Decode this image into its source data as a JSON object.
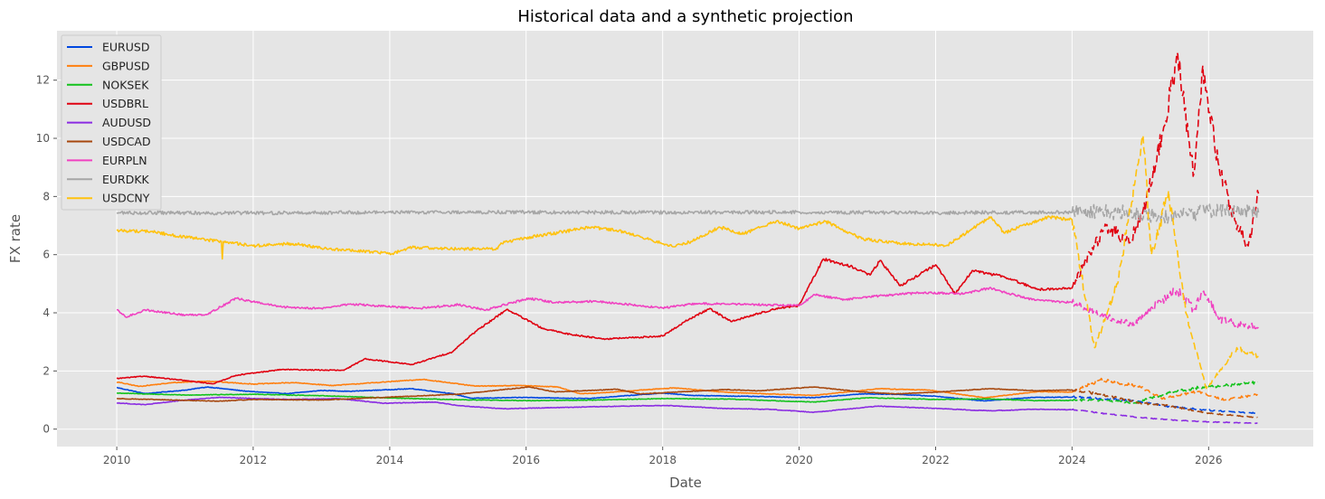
{
  "chart_data": {
    "type": "line",
    "title": "Historical data and a synthetic projection",
    "xlabel": "Date",
    "ylabel": "FX rate",
    "xlim": [
      "2009-02-15",
      "2027-07-15"
    ],
    "ylim": [
      -0.6,
      13.7
    ],
    "x_ticks": [
      "2010",
      "2012",
      "2014",
      "2016",
      "2018",
      "2020",
      "2022",
      "2024",
      "2026"
    ],
    "y_ticks": [
      0,
      2,
      4,
      6,
      8,
      10,
      12
    ],
    "grid": true,
    "background": "#E5E5E5",
    "legend_position": "upper left",
    "historical_style": "solid",
    "projection_style": "dashed",
    "projection_start": "2024-01-01",
    "series": [
      {
        "name": "EURUSD",
        "color": "#0047E0",
        "points": [
          [
            "2010-01-01",
            1.43
          ],
          [
            "2010-06-01",
            1.22
          ],
          [
            "2011-01-01",
            1.34
          ],
          [
            "2011-05-01",
            1.45
          ],
          [
            "2011-12-01",
            1.3
          ],
          [
            "2012-07-01",
            1.22
          ],
          [
            "2013-01-01",
            1.33
          ],
          [
            "2013-06-01",
            1.3
          ],
          [
            "2014-05-01",
            1.39
          ],
          [
            "2014-12-01",
            1.22
          ],
          [
            "2015-03-15",
            1.06
          ],
          [
            "2016-01-01",
            1.09
          ],
          [
            "2016-12-01",
            1.05
          ],
          [
            "2017-06-01",
            1.14
          ],
          [
            "2018-01-01",
            1.24
          ],
          [
            "2018-06-01",
            1.16
          ],
          [
            "2019-06-01",
            1.12
          ],
          [
            "2020-03-15",
            1.08
          ],
          [
            "2020-12-01",
            1.21
          ],
          [
            "2021-06-01",
            1.2
          ],
          [
            "2022-01-01",
            1.13
          ],
          [
            "2022-09-15",
            0.97
          ],
          [
            "2023-06-01",
            1.09
          ],
          [
            "2024-01-01",
            1.1
          ],
          [
            "2024-06-01",
            1.05
          ],
          [
            "2025-01-01",
            0.95
          ],
          [
            "2025-06-01",
            0.78
          ],
          [
            "2026-01-01",
            0.65
          ],
          [
            "2026-05-01",
            0.6
          ],
          [
            "2026-09-20",
            0.55
          ]
        ]
      },
      {
        "name": "GBPUSD",
        "color": "#FF7F0E",
        "points": [
          [
            "2010-01-01",
            1.62
          ],
          [
            "2010-05-01",
            1.47
          ],
          [
            "2010-11-01",
            1.6
          ],
          [
            "2011-05-01",
            1.65
          ],
          [
            "2012-01-01",
            1.55
          ],
          [
            "2012-08-01",
            1.6
          ],
          [
            "2013-03-01",
            1.5
          ],
          [
            "2014-07-01",
            1.71
          ],
          [
            "2015-04-01",
            1.48
          ],
          [
            "2015-12-01",
            1.5
          ],
          [
            "2016-06-20",
            1.45
          ],
          [
            "2016-10-15",
            1.22
          ],
          [
            "2017-01-01",
            1.23
          ],
          [
            "2018-03-01",
            1.42
          ],
          [
            "2018-12-01",
            1.27
          ],
          [
            "2019-08-01",
            1.21
          ],
          [
            "2020-03-20",
            1.16
          ],
          [
            "2021-03-01",
            1.39
          ],
          [
            "2021-12-01",
            1.34
          ],
          [
            "2022-09-20",
            1.08
          ],
          [
            "2023-07-01",
            1.29
          ],
          [
            "2024-01-01",
            1.27
          ],
          [
            "2024-06-01",
            1.7
          ],
          [
            "2025-01-01",
            1.45
          ],
          [
            "2025-05-01",
            1.05
          ],
          [
            "2025-11-01",
            1.3
          ],
          [
            "2026-04-01",
            1.0
          ],
          [
            "2026-09-20",
            1.2
          ]
        ]
      },
      {
        "name": "NOKSEK",
        "color": "#12C21B",
        "points": [
          [
            "2010-01-01",
            1.24
          ],
          [
            "2011-01-01",
            1.17
          ],
          [
            "2012-01-01",
            1.2
          ],
          [
            "2013-01-01",
            1.15
          ],
          [
            "2014-01-01",
            1.07
          ],
          [
            "2015-01-01",
            1.01
          ],
          [
            "2016-01-01",
            0.98
          ],
          [
            "2017-01-01",
            1.0
          ],
          [
            "2018-01-01",
            1.05
          ],
          [
            "2019-01-01",
            1.03
          ],
          [
            "2020-03-20",
            0.93
          ],
          [
            "2021-01-01",
            1.08
          ],
          [
            "2022-01-01",
            1.02
          ],
          [
            "2022-10-01",
            1.04
          ],
          [
            "2023-07-01",
            0.98
          ],
          [
            "2024-01-01",
            0.99
          ],
          [
            "2024-06-01",
            1.0
          ],
          [
            "2024-12-01",
            0.9
          ],
          [
            "2025-06-01",
            1.25
          ],
          [
            "2025-12-01",
            1.45
          ],
          [
            "2026-04-01",
            1.5
          ],
          [
            "2026-09-20",
            1.62
          ]
        ]
      },
      {
        "name": "USDBRL",
        "color": "#E00010",
        "points": [
          [
            "2010-01-01",
            1.74
          ],
          [
            "2010-06-01",
            1.82
          ],
          [
            "2011-06-01",
            1.56
          ],
          [
            "2011-10-01",
            1.85
          ],
          [
            "2012-06-01",
            2.05
          ],
          [
            "2013-05-01",
            2.02
          ],
          [
            "2013-08-20",
            2.42
          ],
          [
            "2014-05-01",
            2.22
          ],
          [
            "2014-12-01",
            2.65
          ],
          [
            "2015-03-15",
            3.25
          ],
          [
            "2015-09-20",
            4.12
          ],
          [
            "2016-04-01",
            3.45
          ],
          [
            "2016-09-01",
            3.25
          ],
          [
            "2017-03-01",
            3.1
          ],
          [
            "2018-01-01",
            3.2
          ],
          [
            "2018-05-01",
            3.7
          ],
          [
            "2018-09-10",
            4.15
          ],
          [
            "2019-01-01",
            3.7
          ],
          [
            "2019-09-01",
            4.15
          ],
          [
            "2020-01-01",
            4.25
          ],
          [
            "2020-05-10",
            5.85
          ],
          [
            "2020-10-01",
            5.6
          ],
          [
            "2021-01-15",
            5.3
          ],
          [
            "2021-03-10",
            5.8
          ],
          [
            "2021-06-25",
            4.93
          ],
          [
            "2022-01-01",
            5.65
          ],
          [
            "2022-04-15",
            4.65
          ],
          [
            "2022-07-15",
            5.45
          ],
          [
            "2023-01-01",
            5.25
          ],
          [
            "2023-07-01",
            4.8
          ],
          [
            "2024-01-01",
            4.85
          ],
          [
            "2024-03-15",
            5.8
          ],
          [
            "2024-07-01",
            7.0
          ],
          [
            "2024-11-01",
            6.4
          ],
          [
            "2025-02-01",
            7.8
          ],
          [
            "2025-05-01",
            10.2
          ],
          [
            "2025-07-20",
            12.9
          ],
          [
            "2025-09-15",
            10.0
          ],
          [
            "2025-10-15",
            8.8
          ],
          [
            "2025-12-01",
            12.5
          ],
          [
            "2026-02-01",
            9.8
          ],
          [
            "2026-05-01",
            7.5
          ],
          [
            "2026-08-01",
            6.3
          ],
          [
            "2026-09-25",
            8.1
          ]
        ]
      },
      {
        "name": "AUDUSD",
        "color": "#8A2BE2",
        "points": [
          [
            "2010-01-01",
            0.9
          ],
          [
            "2010-06-01",
            0.84
          ],
          [
            "2011-01-01",
            1.0
          ],
          [
            "2011-07-01",
            1.09
          ],
          [
            "2012-07-01",
            1.02
          ],
          [
            "2013-04-01",
            1.05
          ],
          [
            "2013-12-01",
            0.89
          ],
          [
            "2014-09-01",
            0.93
          ],
          [
            "2015-01-01",
            0.81
          ],
          [
            "2015-09-01",
            0.7
          ],
          [
            "2016-06-01",
            0.74
          ],
          [
            "2017-09-01",
            0.8
          ],
          [
            "2018-01-25",
            0.81
          ],
          [
            "2018-12-01",
            0.71
          ],
          [
            "2019-08-01",
            0.68
          ],
          [
            "2020-03-20",
            0.58
          ],
          [
            "2021-02-25",
            0.79
          ],
          [
            "2021-12-01",
            0.72
          ],
          [
            "2022-10-15",
            0.63
          ],
          [
            "2023-06-01",
            0.68
          ],
          [
            "2024-01-01",
            0.67
          ],
          [
            "2024-06-01",
            0.55
          ],
          [
            "2025-01-01",
            0.4
          ],
          [
            "2025-06-01",
            0.32
          ],
          [
            "2026-01-01",
            0.25
          ],
          [
            "2026-09-20",
            0.2
          ]
        ]
      },
      {
        "name": "USDCAD",
        "color": "#A6470D",
        "points": [
          [
            "2010-01-01",
            1.05
          ],
          [
            "2011-01-01",
            0.99
          ],
          [
            "2011-07-01",
            0.96
          ],
          [
            "2012-01-01",
            1.02
          ],
          [
            "2013-01-01",
            1.0
          ],
          [
            "2014-01-01",
            1.1
          ],
          [
            "2015-01-01",
            1.2
          ],
          [
            "2016-01-20",
            1.45
          ],
          [
            "2016-06-01",
            1.28
          ],
          [
            "2017-05-01",
            1.37
          ],
          [
            "2017-09-01",
            1.21
          ],
          [
            "2018-12-01",
            1.36
          ],
          [
            "2019-06-01",
            1.32
          ],
          [
            "2020-03-20",
            1.45
          ],
          [
            "2020-12-01",
            1.28
          ],
          [
            "2021-06-01",
            1.21
          ],
          [
            "2022-01-01",
            1.27
          ],
          [
            "2022-10-15",
            1.39
          ],
          [
            "2023-07-01",
            1.32
          ],
          [
            "2024-01-01",
            1.35
          ],
          [
            "2024-06-01",
            1.2
          ],
          [
            "2025-01-01",
            0.9
          ],
          [
            "2025-06-01",
            0.8
          ],
          [
            "2026-01-01",
            0.55
          ],
          [
            "2026-09-20",
            0.4
          ]
        ]
      },
      {
        "name": "EURPLN",
        "color": "#F042C1",
        "points": [
          [
            "2010-01-01",
            4.1
          ],
          [
            "2010-02-20",
            3.85
          ],
          [
            "2010-06-01",
            4.1
          ],
          [
            "2011-01-01",
            3.92
          ],
          [
            "2011-05-01",
            3.95
          ],
          [
            "2011-10-01",
            4.5
          ],
          [
            "2012-01-01",
            4.38
          ],
          [
            "2012-06-01",
            4.2
          ],
          [
            "2013-01-01",
            4.15
          ],
          [
            "2013-06-01",
            4.3
          ],
          [
            "2014-06-01",
            4.15
          ],
          [
            "2015-01-01",
            4.28
          ],
          [
            "2015-06-01",
            4.1
          ],
          [
            "2016-01-15",
            4.5
          ],
          [
            "2016-06-01",
            4.35
          ],
          [
            "2017-01-01",
            4.4
          ],
          [
            "2018-01-01",
            4.17
          ],
          [
            "2018-07-01",
            4.32
          ],
          [
            "2019-01-01",
            4.3
          ],
          [
            "2020-01-01",
            4.25
          ],
          [
            "2020-03-25",
            4.62
          ],
          [
            "2020-09-01",
            4.45
          ],
          [
            "2021-01-01",
            4.55
          ],
          [
            "2021-11-01",
            4.7
          ],
          [
            "2022-06-01",
            4.65
          ],
          [
            "2022-10-15",
            4.85
          ],
          [
            "2023-06-01",
            4.45
          ],
          [
            "2024-01-01",
            4.35
          ],
          [
            "2024-06-01",
            3.9
          ],
          [
            "2024-12-01",
            3.6
          ],
          [
            "2025-04-01",
            4.3
          ],
          [
            "2025-07-15",
            4.8
          ],
          [
            "2025-10-15",
            4.1
          ],
          [
            "2025-12-01",
            4.7
          ],
          [
            "2026-03-01",
            3.8
          ],
          [
            "2026-06-01",
            3.6
          ],
          [
            "2026-09-25",
            3.5
          ]
        ]
      },
      {
        "name": "EURDKK",
        "color": "#A6A6A6",
        "points": [
          [
            "2010-01-01",
            7.44
          ],
          [
            "2012-01-01",
            7.43
          ],
          [
            "2014-01-01",
            7.46
          ],
          [
            "2016-01-01",
            7.46
          ],
          [
            "2018-01-01",
            7.45
          ],
          [
            "2020-01-01",
            7.46
          ],
          [
            "2022-01-01",
            7.44
          ],
          [
            "2024-01-01",
            7.46
          ],
          [
            "2024-06-01",
            7.5
          ],
          [
            "2025-01-01",
            7.4
          ],
          [
            "2025-06-01",
            7.3
          ],
          [
            "2026-01-01",
            7.5
          ],
          [
            "2026-09-25",
            7.45
          ]
        ]
      },
      {
        "name": "USDCNY",
        "color": "#FFC20E",
        "points": [
          [
            "2010-01-01",
            6.83
          ],
          [
            "2010-07-01",
            6.8
          ],
          [
            "2011-01-01",
            6.6
          ],
          [
            "2011-07-15",
            6.45
          ],
          [
            "2011-07-20",
            5.85
          ],
          [
            "2011-07-25",
            6.45
          ],
          [
            "2012-01-01",
            6.3
          ],
          [
            "2012-08-01",
            6.38
          ],
          [
            "2013-01-01",
            6.22
          ],
          [
            "2014-01-15",
            6.04
          ],
          [
            "2014-05-01",
            6.25
          ],
          [
            "2015-01-01",
            6.2
          ],
          [
            "2015-08-01",
            6.2
          ],
          [
            "2015-08-20",
            6.4
          ],
          [
            "2016-01-01",
            6.58
          ],
          [
            "2016-12-15",
            6.95
          ],
          [
            "2017-06-01",
            6.8
          ],
          [
            "2018-03-01",
            6.27
          ],
          [
            "2018-06-01",
            6.45
          ],
          [
            "2018-11-01",
            6.95
          ],
          [
            "2019-03-01",
            6.7
          ],
          [
            "2019-09-01",
            7.15
          ],
          [
            "2020-01-01",
            6.9
          ],
          [
            "2020-05-20",
            7.15
          ],
          [
            "2020-12-01",
            6.55
          ],
          [
            "2021-06-01",
            6.4
          ],
          [
            "2022-03-01",
            6.32
          ],
          [
            "2022-10-25",
            7.3
          ],
          [
            "2023-01-01",
            6.75
          ],
          [
            "2023-09-01",
            7.3
          ],
          [
            "2024-01-01",
            7.2
          ],
          [
            "2024-02-15",
            5.5
          ],
          [
            "2024-05-01",
            2.8
          ],
          [
            "2024-09-01",
            5.0
          ],
          [
            "2025-01-15",
            10.1
          ],
          [
            "2025-03-01",
            6.0
          ],
          [
            "2025-06-01",
            8.2
          ],
          [
            "2025-09-01",
            4.0
          ],
          [
            "2025-12-20",
            1.4
          ],
          [
            "2026-03-01",
            2.0
          ],
          [
            "2026-06-01",
            2.8
          ],
          [
            "2026-09-25",
            2.5
          ]
        ]
      }
    ]
  }
}
